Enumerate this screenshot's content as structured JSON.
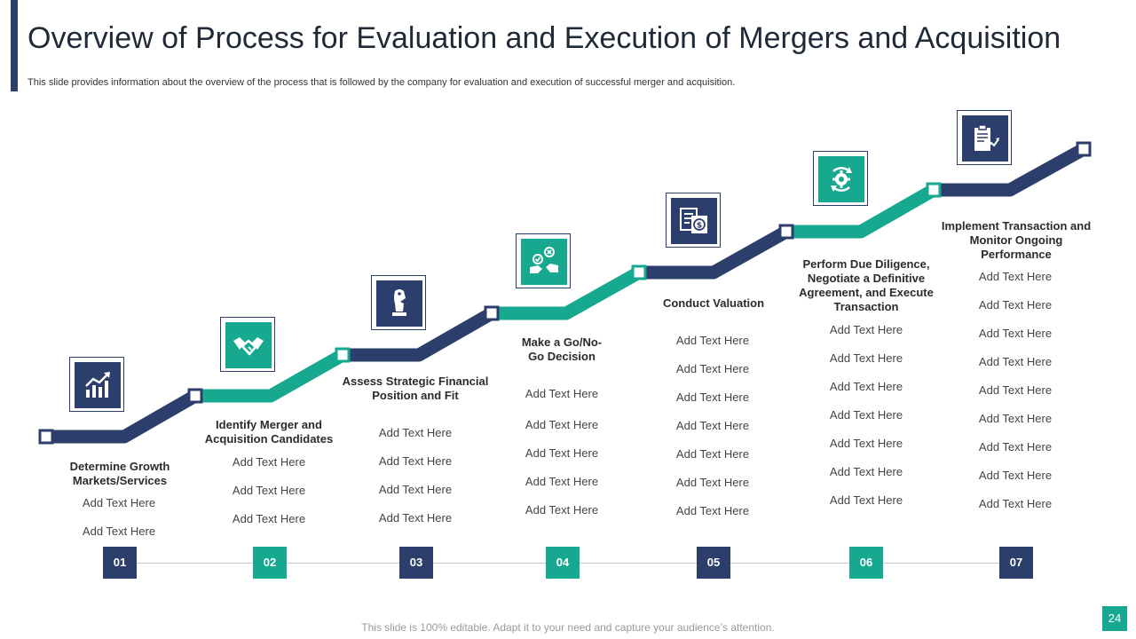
{
  "header": {
    "title": "Overview of Process for Evaluation and Execution of Mergers and Acquisition",
    "subtitle": "This slide provides information about the overview of the process that is followed by the company for evaluation and execution of successful merger and acquisition."
  },
  "colors": {
    "navy": "#2c3e6b",
    "teal": "#16a98f"
  },
  "steps": [
    {
      "number": "01",
      "title": "Determine Growth Markets/Services",
      "icon": "growth-chart-icon",
      "items": [
        "Add Text Here",
        "Add Text Here"
      ]
    },
    {
      "number": "02",
      "title": "Identify Merger and Acquisition Candidates",
      "icon": "handshake-icon",
      "items": [
        "Add Text Here",
        "Add Text Here",
        "Add Text Here"
      ]
    },
    {
      "number": "03",
      "title": "Assess Strategic Financial Position and Fit",
      "icon": "chess-piece-icon",
      "items": [
        "Add Text Here",
        "Add Text Here",
        "Add Text Here",
        "Add Text Here"
      ]
    },
    {
      "number": "04",
      "title": "Make a Go/No-Go Decision",
      "icon": "decision-hands-icon",
      "items": [
        "Add Text Here",
        "Add Text Here",
        "Add Text Here",
        "Add Text Here",
        "Add Text Here"
      ]
    },
    {
      "number": "05",
      "title": "Conduct Valuation",
      "icon": "valuation-document-icon",
      "items": [
        "Add Text Here",
        "Add Text Here",
        "Add Text Here",
        "Add Text Here",
        "Add Text Here",
        "Add Text Here",
        "Add Text Here"
      ]
    },
    {
      "number": "06",
      "title": "Perform Due Diligence, Negotiate a Definitive Agreement, and Execute Transaction",
      "icon": "gear-cycle-icon",
      "items": [
        "Add Text Here",
        "Add Text Here",
        "Add Text Here",
        "Add Text Here",
        "Add Text Here",
        "Add Text Here",
        "Add Text Here"
      ]
    },
    {
      "number": "07",
      "title": "Implement Transaction and Monitor Ongoing Performance",
      "icon": "clipboard-chart-icon",
      "items": [
        "Add Text Here",
        "Add Text Here",
        "Add Text Here",
        "Add Text Here",
        "Add Text Here",
        "Add Text Here",
        "Add Text Here",
        "Add Text Here",
        "Add Text Here"
      ]
    }
  ],
  "footer": {
    "text": "This slide is 100% editable. Adapt it to your need and capture your audience’s attention."
  },
  "page_number": "24"
}
